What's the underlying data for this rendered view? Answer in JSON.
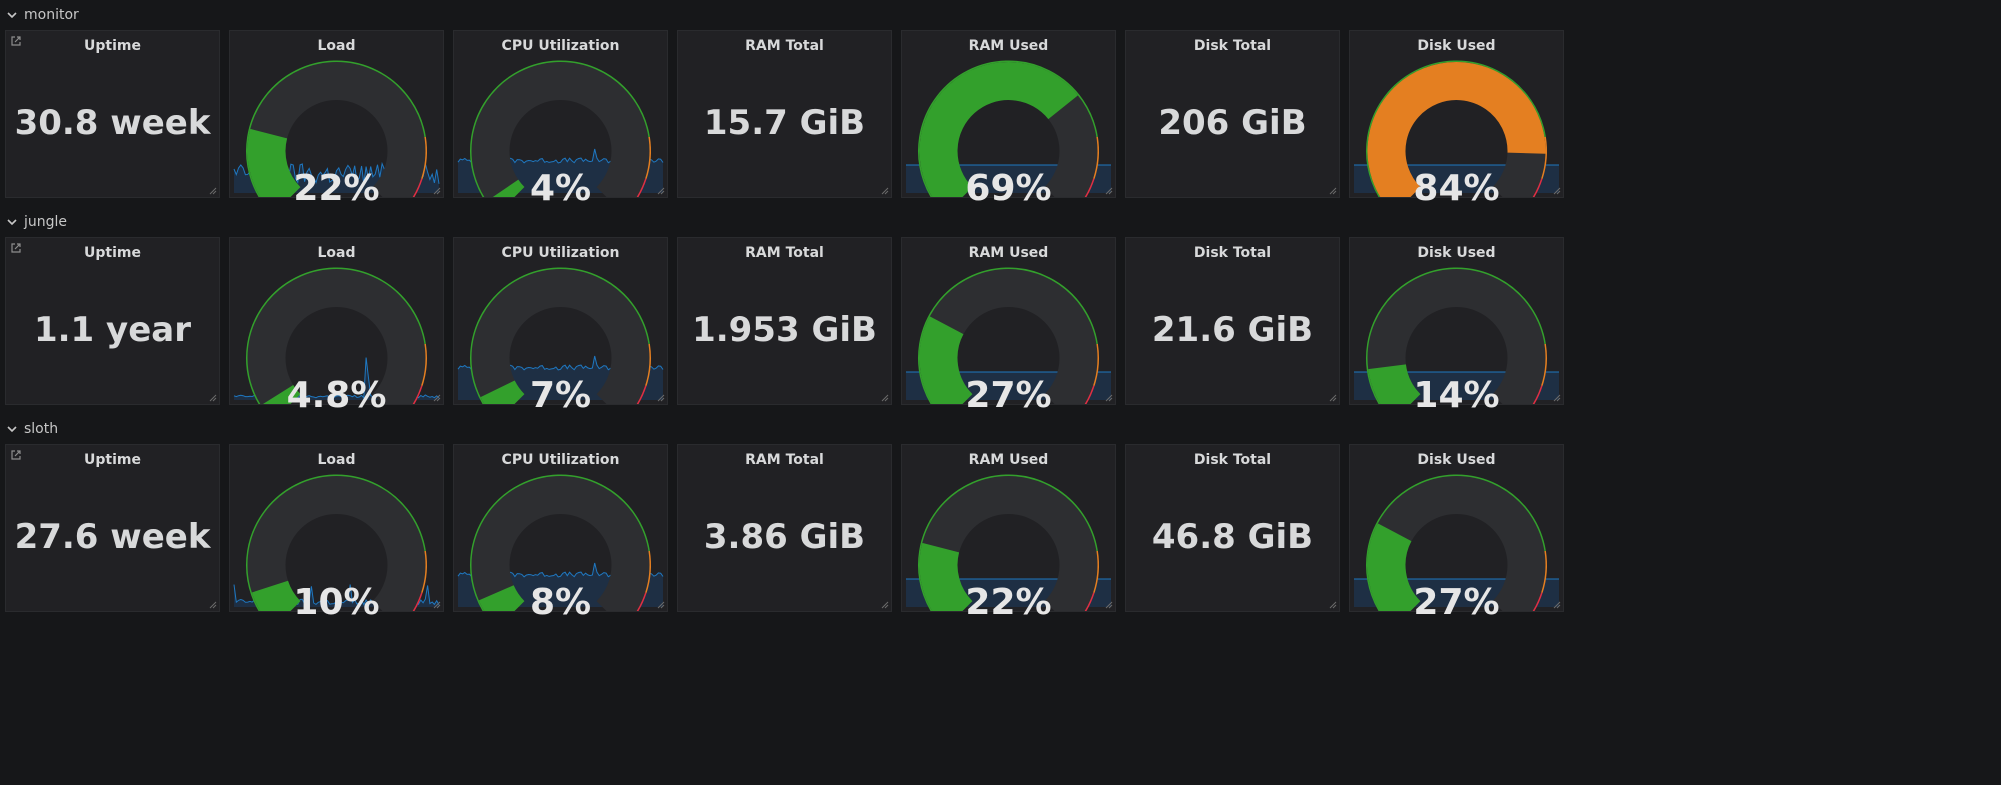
{
  "colors": {
    "green": "#33a02c",
    "orange": "#e47f21",
    "red": "#e02f44",
    "sparkline": "#1f78c1",
    "sparkfill": "#1e3148"
  },
  "rows": [
    {
      "name": "monitor",
      "panels": [
        {
          "type": "stat",
          "title": "Uptime",
          "value": "30.8 week"
        },
        {
          "type": "gauge",
          "title": "Load",
          "display": "22%",
          "value": 22,
          "fill": "green",
          "spark": "load1"
        },
        {
          "type": "gauge",
          "title": "CPU Utilization",
          "display": "4%",
          "value": 4,
          "fill": "green",
          "spark": "cpu"
        },
        {
          "type": "stat",
          "title": "RAM Total",
          "value": "15.7 GiB"
        },
        {
          "type": "gauge",
          "title": "RAM Used",
          "display": "69%",
          "value": 69,
          "fill": "green",
          "spark": "flat"
        },
        {
          "type": "stat",
          "title": "Disk Total",
          "value": "206 GiB"
        },
        {
          "type": "gauge",
          "title": "Disk Used",
          "display": "84%",
          "value": 84,
          "fill": "orange",
          "spark": "flat"
        }
      ]
    },
    {
      "name": "jungle",
      "panels": [
        {
          "type": "stat",
          "title": "Uptime",
          "value": "1.1 year"
        },
        {
          "type": "gauge",
          "title": "Load",
          "display": "4.8%",
          "value": 4.8,
          "fill": "green",
          "spark": "load2"
        },
        {
          "type": "gauge",
          "title": "CPU Utilization",
          "display": "7%",
          "value": 7,
          "fill": "green",
          "spark": "cpu"
        },
        {
          "type": "stat",
          "title": "RAM Total",
          "value": "1.953 GiB"
        },
        {
          "type": "gauge",
          "title": "RAM Used",
          "display": "27%",
          "value": 27,
          "fill": "green",
          "spark": "flat"
        },
        {
          "type": "stat",
          "title": "Disk Total",
          "value": "21.6 GiB"
        },
        {
          "type": "gauge",
          "title": "Disk Used",
          "display": "14%",
          "value": 14,
          "fill": "green",
          "spark": "flat"
        }
      ]
    },
    {
      "name": "sloth",
      "panels": [
        {
          "type": "stat",
          "title": "Uptime",
          "value": "27.6 week"
        },
        {
          "type": "gauge",
          "title": "Load",
          "display": "10%",
          "value": 10,
          "fill": "green",
          "spark": "load3"
        },
        {
          "type": "gauge",
          "title": "CPU Utilization",
          "display": "8%",
          "value": 8,
          "fill": "green",
          "spark": "cpu"
        },
        {
          "type": "stat",
          "title": "RAM Total",
          "value": "3.86 GiB"
        },
        {
          "type": "gauge",
          "title": "RAM Used",
          "display": "22%",
          "value": 22,
          "fill": "green",
          "spark": "flat"
        },
        {
          "type": "stat",
          "title": "Disk Total",
          "value": "46.8 GiB"
        },
        {
          "type": "gauge",
          "title": "Disk Used",
          "display": "27%",
          "value": 27,
          "fill": "green",
          "spark": "flat"
        }
      ]
    }
  ]
}
